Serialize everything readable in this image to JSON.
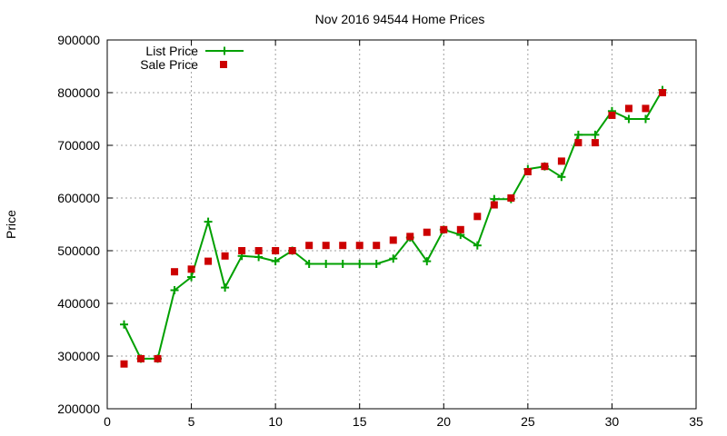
{
  "chart_data": {
    "type": "line",
    "title": "Nov 2016 94544 Home Prices",
    "xlabel": "",
    "ylabel": "Price",
    "xlim": [
      0,
      35
    ],
    "ylim": [
      200000,
      900000
    ],
    "xticks": [
      "0",
      "5",
      "10",
      "15",
      "20",
      "25",
      "30",
      "35"
    ],
    "yticks": [
      "200000",
      "300000",
      "400000",
      "500000",
      "600000",
      "700000",
      "800000",
      "900000"
    ],
    "grid": true,
    "legend_position": "top-left",
    "series": [
      {
        "name": "List Price",
        "style": "line-with-plus-markers",
        "color": "#00a000",
        "x": [
          1,
          2,
          3,
          4,
          5,
          6,
          7,
          8,
          9,
          10,
          11,
          12,
          13,
          14,
          15,
          16,
          17,
          18,
          19,
          20,
          21,
          22,
          23,
          24,
          25,
          26,
          27,
          28,
          29,
          30,
          31,
          32,
          33
        ],
        "values": [
          360000,
          295000,
          295000,
          425000,
          450000,
          555000,
          430000,
          490000,
          488000,
          480000,
          500000,
          475000,
          475000,
          475000,
          475000,
          475000,
          485000,
          525000,
          480000,
          540000,
          530000,
          510000,
          598000,
          598000,
          655000,
          660000,
          640000,
          720000,
          720000,
          765000,
          750000,
          750000,
          805000
        ]
      },
      {
        "name": "Sale Price",
        "style": "square-markers",
        "color": "#cc0000",
        "x": [
          1,
          2,
          3,
          4,
          5,
          6,
          7,
          8,
          9,
          10,
          11,
          12,
          13,
          14,
          15,
          16,
          17,
          18,
          19,
          20,
          21,
          22,
          23,
          24,
          25,
          26,
          27,
          28,
          29,
          30,
          31,
          32,
          33
        ],
        "values": [
          285000,
          295000,
          295000,
          460000,
          465000,
          480000,
          490000,
          500000,
          500000,
          500000,
          500000,
          510000,
          510000,
          510000,
          510000,
          510000,
          520000,
          527000,
          535000,
          540000,
          540000,
          565000,
          587000,
          600000,
          650000,
          660000,
          670000,
          705000,
          705000,
          757000,
          770000,
          770000,
          800000
        ]
      }
    ]
  }
}
